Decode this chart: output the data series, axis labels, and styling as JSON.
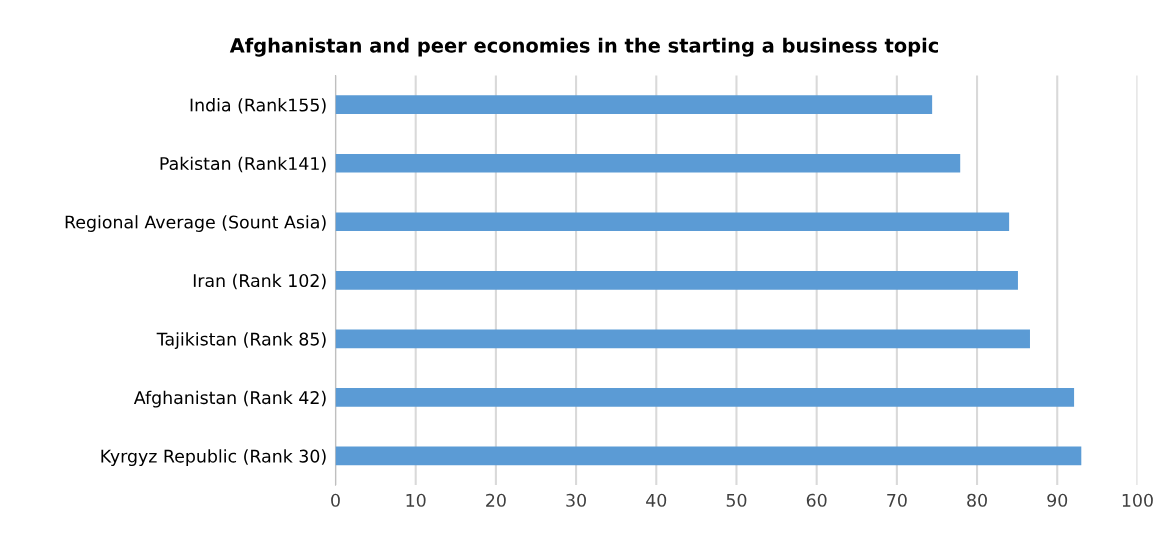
{
  "chart_data": {
    "type": "bar",
    "orientation": "horizontal",
    "title": "Afghanistan and peer economies in the starting a business topic",
    "categories": [
      "India (Rank155)",
      "Pakistan (Rank141)",
      "Regional Average (Sount Asia)",
      "Iran (Rank 102)",
      "Tajikistan (Rank 85)",
      "Afghanistan (Rank 42)",
      "Kyrgyz Republic (Rank 30)"
    ],
    "values": [
      74.4,
      77.9,
      84.0,
      85.1,
      86.6,
      92.1,
      93.0
    ],
    "color": "#5b9bd5",
    "xlim": [
      0,
      100
    ],
    "xticks": [
      0,
      10,
      20,
      30,
      40,
      50,
      60,
      70,
      80,
      90,
      100
    ],
    "grid": "x"
  }
}
